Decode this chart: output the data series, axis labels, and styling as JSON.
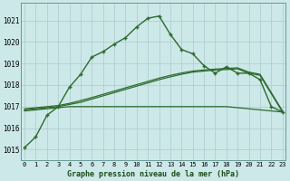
{
  "title": "Graphe pression niveau de la mer (hPa)",
  "bg_color": "#cde8e8",
  "plot_bg_color": "#cde8e8",
  "grid_color": "#aacccc",
  "line_color": "#2d6a2d",
  "x_labels": [
    "0",
    "1",
    "2",
    "3",
    "4",
    "5",
    "6",
    "7",
    "8",
    "9",
    "10",
    "11",
    "12",
    "13",
    "14",
    "15",
    "16",
    "17",
    "18",
    "19",
    "20",
    "21",
    "22",
    "23"
  ],
  "ylim": [
    1014.5,
    1021.8
  ],
  "yticks": [
    1015,
    1016,
    1017,
    1018,
    1019,
    1020,
    1021
  ],
  "main_series": [
    1015.1,
    1015.6,
    1016.6,
    1017.0,
    1017.9,
    1018.5,
    1019.3,
    1019.55,
    1019.9,
    1020.2,
    1020.7,
    1021.1,
    1021.2,
    1020.35,
    1019.65,
    1019.45,
    1018.9,
    1018.55,
    1018.85,
    1018.55,
    1018.55,
    1018.25,
    1017.0,
    1016.75
  ],
  "flat_series": [
    1016.8,
    1016.85,
    1016.9,
    1016.95,
    1017.0,
    1017.0,
    1017.0,
    1017.0,
    1017.0,
    1017.0,
    1017.0,
    1017.0,
    1017.0,
    1017.0,
    1017.0,
    1017.0,
    1017.0,
    1017.0,
    1017.0,
    1016.95,
    1016.9,
    1016.85,
    1016.8,
    1016.75
  ],
  "rising_series1": [
    1016.85,
    1016.9,
    1016.95,
    1017.0,
    1017.1,
    1017.2,
    1017.35,
    1017.5,
    1017.65,
    1017.8,
    1017.95,
    1018.1,
    1018.25,
    1018.38,
    1018.5,
    1018.6,
    1018.65,
    1018.7,
    1018.72,
    1018.75,
    1018.55,
    1018.45,
    1017.6,
    1016.75
  ],
  "rising_series2": [
    1016.9,
    1016.95,
    1017.0,
    1017.05,
    1017.15,
    1017.28,
    1017.42,
    1017.57,
    1017.72,
    1017.87,
    1018.02,
    1018.17,
    1018.32,
    1018.45,
    1018.56,
    1018.65,
    1018.7,
    1018.74,
    1018.77,
    1018.8,
    1018.6,
    1018.5,
    1017.65,
    1016.8
  ]
}
